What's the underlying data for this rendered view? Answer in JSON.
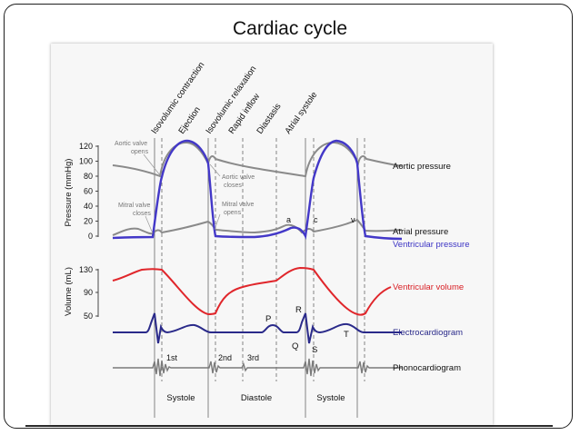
{
  "slide": {
    "title": "Cardiac cycle"
  },
  "phase_labels": [
    "Isovolumic contraction",
    "Ejection",
    "Isovolumic relaxation",
    "Rapid inflow",
    "Diastasis",
    "Atrial systole"
  ],
  "pressure_axis": {
    "label": "Pressure (mmHg)",
    "ticks": [
      "120",
      "100",
      "80",
      "60",
      "40",
      "20",
      "0"
    ]
  },
  "volume_axis": {
    "label": "Volume (mL)",
    "ticks": [
      "130",
      "90",
      "50"
    ]
  },
  "annotations": {
    "aortic_opens": [
      "Aortic valve",
      "opens"
    ],
    "aortic_closes": [
      "Aortic valve",
      "closes"
    ],
    "mitral_closes": [
      "Mitral valve",
      "closes"
    ],
    "mitral_opens": [
      "Mitral valve",
      "opens"
    ]
  },
  "wave_letters": {
    "a": "a",
    "c": "c",
    "v": "v"
  },
  "ecg_letters": {
    "P": "P",
    "R": "R",
    "Q": "Q",
    "S": "S",
    "T": "T"
  },
  "heart_sounds": {
    "first": "1st",
    "second": "2nd",
    "third": "3rd"
  },
  "cycle_labels": {
    "systole_1": "Systole",
    "diastole": "Diastole",
    "systole_2": "Systole"
  },
  "trace_labels": {
    "aortic_pressure": "Aortic pressure",
    "atrial_pressure": "Atrial pressure",
    "ventricular_pressure": "Ventricular pressure",
    "ventricular_volume": "Ventricular volume",
    "electrocardiogram": "Electrocardiogram",
    "phonocardiogram": "Phonocardiogram"
  },
  "colors": {
    "aortic_pressure": "#8a8a8a",
    "atrial_pressure": "#8a8a8a",
    "ventricular_pressure": "#4338c8",
    "ventricular_volume": "#e0262b",
    "electrocardiogram": "#2a2a8a",
    "phonocardiogram": "#7a7a7a",
    "ventricular_label": "#3b33c4",
    "volume_label": "#d81e24",
    "ecg_label": "#2a2a8a"
  }
}
